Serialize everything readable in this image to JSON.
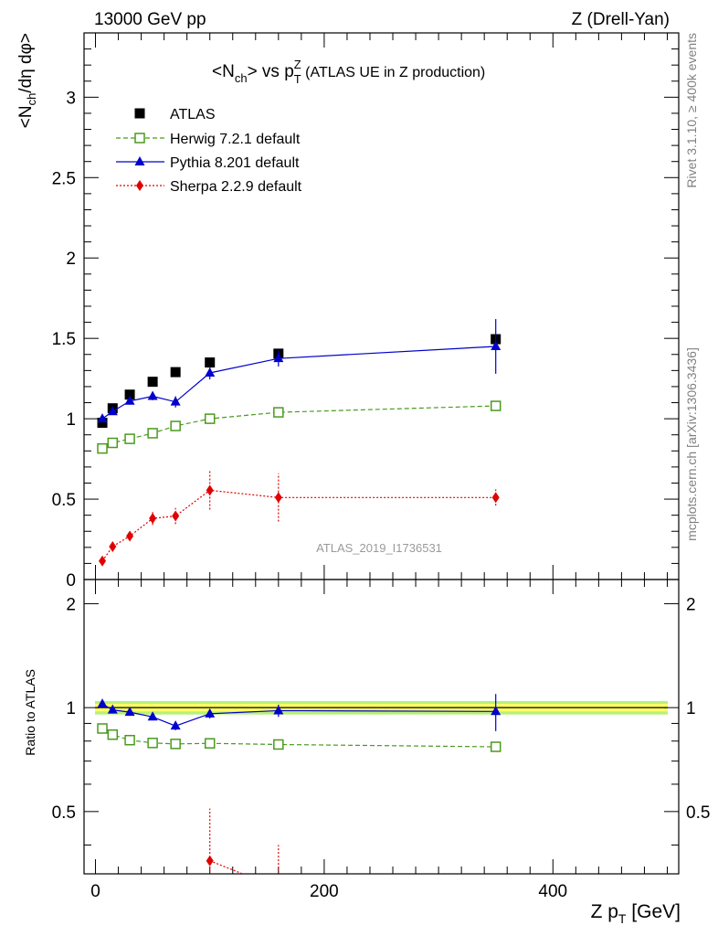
{
  "header": {
    "left": "13000 GeV pp",
    "right": "Z (Drell-Yan)"
  },
  "side_labels": {
    "rivet": "Rivet 3.1.10, ≥ 400k events",
    "mcplots": "mcplots.cern.ch [arXiv:1306.3436]"
  },
  "watermark": "ATLAS_2019_I1736531",
  "chart_data": [
    {
      "type": "scatter",
      "title_parts": [
        "<N",
        "ch",
        "> vs p",
        "T",
        "Z",
        " (ATLAS UE in Z production)"
      ],
      "ylabel_parts": [
        "<N",
        "ch",
        "/dη dφ>"
      ],
      "xlim": [
        -10,
        510
      ],
      "ylim": [
        0,
        3.4
      ],
      "yticks": [
        0,
        0.5,
        1,
        1.5,
        2,
        2.5,
        3
      ],
      "ytick_labels": [
        "0",
        "0.5",
        "1",
        "1.5",
        "2",
        "2.5",
        "3"
      ],
      "legend_position": "top-left",
      "series": [
        {
          "name": "ATLAS",
          "color": "#000000",
          "marker": "square-filled",
          "line": "none",
          "x": [
            6,
            15,
            30,
            50,
            70,
            100,
            160,
            350
          ],
          "y": [
            0.975,
            1.065,
            1.15,
            1.23,
            1.29,
            1.35,
            1.405,
            1.495
          ]
        },
        {
          "name": "Herwig 7.2.1 default",
          "color": "#4a9a1e",
          "marker": "square-open",
          "line": "dashed",
          "x": [
            6,
            15,
            30,
            50,
            70,
            100,
            160,
            350
          ],
          "y": [
            0.815,
            0.85,
            0.875,
            0.91,
            0.955,
            1.0,
            1.04,
            1.08
          ]
        },
        {
          "name": "Pythia 8.201 default",
          "color": "#0000cc",
          "marker": "triangle",
          "line": "solid",
          "x": [
            6,
            15,
            30,
            50,
            70,
            100,
            160,
            350
          ],
          "y": [
            1.0,
            1.045,
            1.11,
            1.14,
            1.105,
            1.285,
            1.375,
            1.45
          ],
          "yerr": [
            0.02,
            0.02,
            0.02,
            0.025,
            0.035,
            0.04,
            0.05,
            0.17
          ]
        },
        {
          "name": "Sherpa 2.2.9 default",
          "color": "#e00000",
          "marker": "diamond",
          "line": "dotted",
          "x": [
            6,
            15,
            30,
            50,
            70,
            100,
            160,
            350
          ],
          "y": [
            0.115,
            0.205,
            0.27,
            0.38,
            0.395,
            0.555,
            0.51,
            0.51
          ],
          "yerr": [
            0.015,
            0.02,
            0.025,
            0.04,
            0.05,
            0.12,
            0.15,
            0.05
          ]
        }
      ]
    },
    {
      "type": "scatter",
      "ylabel": "Ratio to ATLAS",
      "xlabel_parts": [
        "Z p",
        "T",
        " [GeV]"
      ],
      "xlim": [
        -10,
        510
      ],
      "ylim": [
        0.33,
        2.35
      ],
      "log_y": true,
      "yticks": [
        0.5,
        1,
        2
      ],
      "ytick_labels": [
        "0.5",
        "1",
        "2"
      ],
      "xticks": [
        0,
        200,
        400
      ],
      "xtick_labels": [
        "0",
        "200",
        "400"
      ],
      "band": {
        "inner": [
          0.975,
          1.025
        ],
        "outer": [
          0.955,
          1.045
        ],
        "inner_color": "#ffff66",
        "outer_color": "#b8f07a"
      },
      "series": [
        {
          "name": "Herwig 7.2.1 default",
          "color": "#4a9a1e",
          "marker": "square-open",
          "line": "dashed",
          "x": [
            6,
            15,
            30,
            50,
            70,
            100,
            160,
            350
          ],
          "y": [
            0.87,
            0.835,
            0.805,
            0.79,
            0.785,
            0.788,
            0.782,
            0.77
          ]
        },
        {
          "name": "Pythia 8.201 default",
          "color": "#0000cc",
          "marker": "triangle",
          "line": "solid",
          "x": [
            6,
            15,
            30,
            50,
            70,
            100,
            160,
            350
          ],
          "y": [
            1.025,
            0.985,
            0.97,
            0.94,
            0.885,
            0.96,
            0.98,
            0.975
          ],
          "yerr": [
            0.02,
            0.02,
            0.02,
            0.02,
            0.025,
            0.03,
            0.04,
            0.12
          ]
        },
        {
          "name": "Sherpa 2.2.9 default",
          "color": "#e00000",
          "marker": "diamond",
          "line": "dotted",
          "x": [
            100,
            160
          ],
          "y": [
            0.36,
            0.3
          ],
          "yerr": [
            0.15,
            0.1
          ]
        }
      ]
    }
  ]
}
